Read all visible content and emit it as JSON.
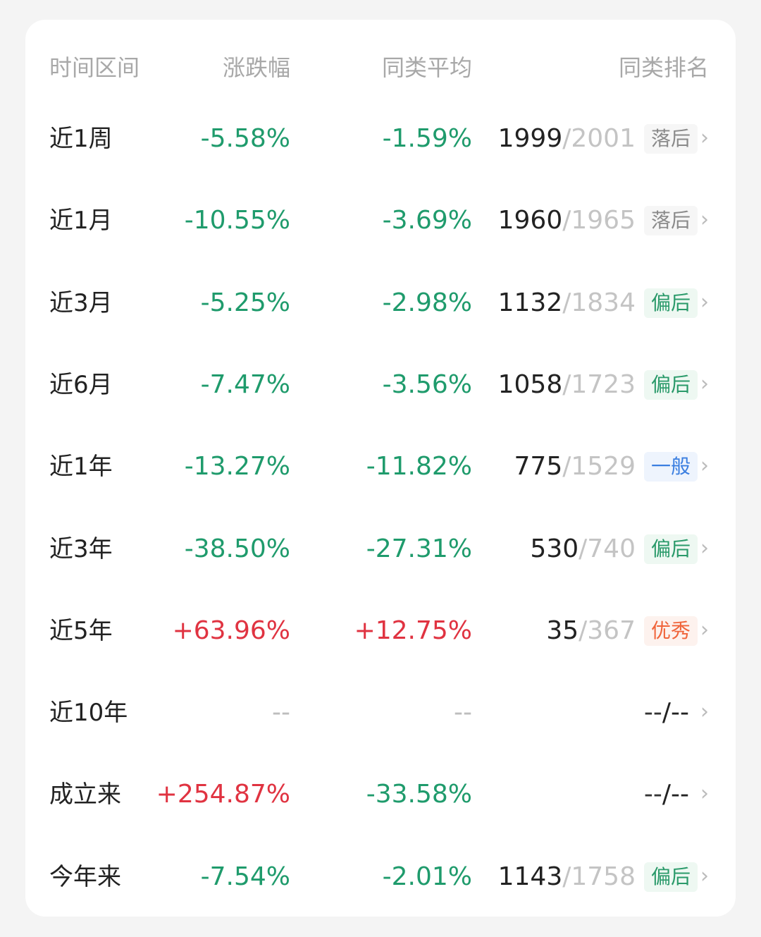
{
  "header": {
    "period": "时间区间",
    "change": "涨跌幅",
    "avg": "同类平均",
    "rank": "同类排名"
  },
  "colors": {
    "down": "#1f9b6c",
    "up": "#e03341",
    "dash": "#bdbdbd"
  },
  "badge_styles": {
    "落后": {
      "color": "#8a8a8a",
      "bg": "#f6f6f6"
    },
    "偏后": {
      "color": "#2a9a6a",
      "bg": "#eef8f2"
    },
    "一般": {
      "color": "#3a7ee0",
      "bg": "#eef4fd"
    },
    "优秀": {
      "color": "#f0643a",
      "bg": "#fdf2ee"
    }
  },
  "rows": [
    {
      "period": "近1周",
      "change": "-5.58%",
      "avg": "-1.59%",
      "rank": "1999",
      "total": "2001",
      "badge": "落后",
      "chevron": "›"
    },
    {
      "period": "近1月",
      "change": "-10.55%",
      "avg": "-3.69%",
      "rank": "1960",
      "total": "1965",
      "badge": "落后",
      "chevron": "›"
    },
    {
      "period": "近3月",
      "change": "-5.25%",
      "avg": "-2.98%",
      "rank": "1132",
      "total": "1834",
      "badge": "偏后",
      "chevron": "›"
    },
    {
      "period": "近6月",
      "change": "-7.47%",
      "avg": "-3.56%",
      "rank": "1058",
      "total": "1723",
      "badge": "偏后",
      "chevron": "›"
    },
    {
      "period": "近1年",
      "change": "-13.27%",
      "avg": "-11.82%",
      "rank": "775",
      "total": "1529",
      "badge": "一般",
      "chevron": "›"
    },
    {
      "period": "近3年",
      "change": "-38.50%",
      "avg": "-27.31%",
      "rank": "530",
      "total": "740",
      "badge": "偏后",
      "chevron": "›"
    },
    {
      "period": "近5年",
      "change": "+63.96%",
      "avg": "+12.75%",
      "rank": "35",
      "total": "367",
      "badge": "优秀",
      "chevron": "›"
    },
    {
      "period": "近10年",
      "change": "--",
      "avg": "--",
      "rank": "--",
      "total": "--",
      "badge": "",
      "chevron": "›"
    },
    {
      "period": "成立来",
      "change": "+254.87%",
      "avg": "-33.58%",
      "rank": "--",
      "total": "--",
      "badge": "",
      "chevron": "›"
    },
    {
      "period": "今年来",
      "change": "-7.54%",
      "avg": "-2.01%",
      "rank": "1143",
      "total": "1758",
      "badge": "偏后",
      "chevron": "›"
    }
  ]
}
